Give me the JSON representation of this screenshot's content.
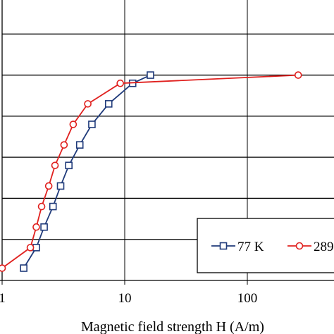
{
  "chart_data": {
    "type": "line",
    "xscale": "log",
    "xlim": [
      1,
      1000
    ],
    "ylim": [
      0,
      7
    ],
    "xticks": [
      {
        "value": 1,
        "label": "1"
      },
      {
        "value": 10,
        "label": "10"
      },
      {
        "value": 100,
        "label": "100"
      }
    ],
    "xlabel": "Magnetic field strength H (A/m)",
    "ylabel": "",
    "grid": true,
    "legend_position": "bottom-right",
    "series": [
      {
        "name": "77 K",
        "color": "#1f3a7a",
        "marker": "square",
        "x": [
          1.5,
          1.9,
          2.2,
          2.6,
          3.0,
          3.5,
          4.3,
          5.4,
          7.4,
          11.6,
          16.2
        ],
        "y": [
          0.3,
          0.8,
          1.3,
          1.8,
          2.3,
          2.8,
          3.3,
          3.8,
          4.3,
          4.8,
          5.0
        ]
      },
      {
        "name": "289",
        "color": "#e0201e",
        "marker": "circle",
        "x": [
          1.0,
          1.7,
          1.9,
          2.1,
          2.4,
          2.7,
          3.2,
          3.8,
          5.0,
          9.2,
          260.0
        ],
        "y": [
          0.3,
          0.8,
          1.3,
          1.8,
          2.3,
          2.8,
          3.3,
          3.8,
          4.3,
          4.8,
          5.0
        ]
      }
    ]
  }
}
